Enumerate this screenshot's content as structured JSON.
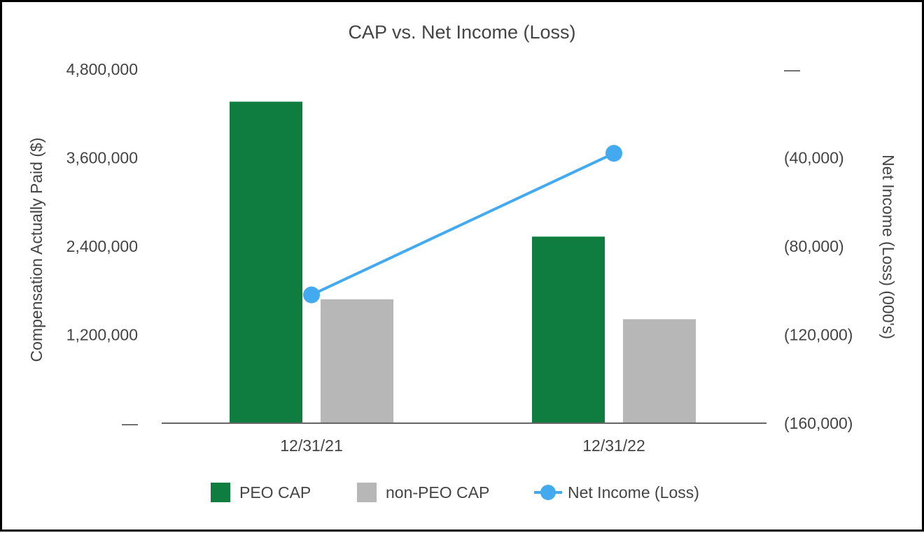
{
  "chart_data": {
    "type": "bar",
    "title": "CAP vs. Net Income (Loss)",
    "categories": [
      "12/31/21",
      "12/31/22"
    ],
    "series": [
      {
        "name": "PEO CAP",
        "kind": "bar",
        "axis": "left",
        "color": "#0f7d3f",
        "values": [
          4360000,
          2530000
        ]
      },
      {
        "name": "non-PEO CAP",
        "kind": "bar",
        "axis": "left",
        "color": "#b7b7b7",
        "values": [
          1680000,
          1410000
        ]
      },
      {
        "name": "Net Income (Loss)",
        "kind": "line",
        "axis": "right",
        "color": "#44aaf0",
        "values": [
          -102000,
          -38000
        ]
      }
    ],
    "ylabel": "Compensation Actually Paid ($)",
    "y2label": "Net Income (Loss) (000's)",
    "ylim": [
      0,
      4800000
    ],
    "y2lim": [
      -160000,
      0
    ],
    "yticks": [
      {
        "value": 0,
        "label": "—"
      },
      {
        "value": 1200000,
        "label": "1,200,000"
      },
      {
        "value": 2400000,
        "label": "2,400,000"
      },
      {
        "value": 3600000,
        "label": "3,600,000"
      },
      {
        "value": 4800000,
        "label": "4,800,000"
      }
    ],
    "y2ticks": [
      {
        "value": -160000,
        "label": "(160,000)"
      },
      {
        "value": -120000,
        "label": "(120,000)"
      },
      {
        "value": -80000,
        "label": "(80,000)"
      },
      {
        "value": -40000,
        "label": "(40,000)"
      },
      {
        "value": 0,
        "label": "—"
      }
    ],
    "legend_position": "bottom",
    "grid": false
  }
}
